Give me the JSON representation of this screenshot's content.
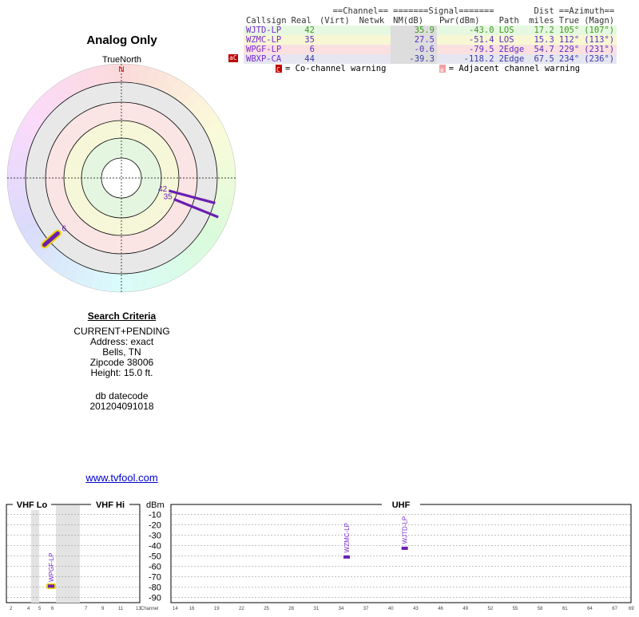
{
  "page": {
    "title": "Analog Only",
    "true_north": "TrueNorth",
    "north_marker": "N",
    "site_link": "www.tvfool.com"
  },
  "criteria": {
    "header": "Search Criteria",
    "lines": [
      "CURRENT+PENDING",
      "Address: exact",
      "Bells, TN",
      "Zipcode 38006",
      "Height: 15.0 ft."
    ],
    "db_label": "db datecode",
    "db_value": "201204091018"
  },
  "table": {
    "group_headers": {
      "channel": "==Channel==",
      "signal": "=======Signal=======",
      "dist": "Dist",
      "azimuth": "==Azimuth=="
    },
    "columns": [
      "Callsign",
      "Real",
      "(Virt)",
      "Netwk",
      "NM(dB)",
      "Pwr(dBm)",
      "Path",
      "miles",
      "True",
      "(Magn)"
    ],
    "rows": [
      {
        "callsign": "WJTD-LP",
        "real": "42",
        "virt": "",
        "netwk": "",
        "nm": "35.9",
        "pwr": "-43.0",
        "path": "LOS",
        "dist": "17.2",
        "true": "105°",
        "magn": "(107°)",
        "band": "g",
        "flag": ""
      },
      {
        "callsign": "WZMC-LP",
        "real": "35",
        "virt": "",
        "netwk": "",
        "nm": "27.5",
        "pwr": "-51.4",
        "path": "LOS",
        "dist": "15.3",
        "true": "112°",
        "magn": "(113°)",
        "band": "y",
        "flag": ""
      },
      {
        "callsign": "WPGF-LP",
        "real": "6",
        "virt": "",
        "netwk": "",
        "nm": "-0.6",
        "pwr": "-79.5",
        "path": "2Edge",
        "dist": "54.7",
        "true": "229°",
        "magn": "(231°)",
        "band": "r",
        "flag": ""
      },
      {
        "callsign": "WBXP-CA",
        "real": "44",
        "virt": "",
        "netwk": "",
        "nm": "-39.3",
        "pwr": "-118.2",
        "path": "2Edge",
        "dist": "67.5",
        "true": "234°",
        "magn": "(236°)",
        "band": "b",
        "flag": "aC"
      }
    ]
  },
  "legend": {
    "cochannel_letter": "C",
    "cochannel_text": "= Co-channel warning",
    "adjacent_letter": "a",
    "adjacent_text": "= Adjacent channel warning",
    "cochannel_color": "#c00000",
    "adjacent_color": "#f4a0a0"
  },
  "chart_data": [
    {
      "type": "scatter",
      "subtype": "polar",
      "description_axis": "azimuth (true degrees)",
      "title": "Analog Only",
      "series": [
        {
          "label": "42",
          "azimuth": 105,
          "nm_db": 35.9,
          "color": "#6a1fb0",
          "highlight": false
        },
        {
          "label": "35",
          "azimuth": 112,
          "nm_db": 27.5,
          "color": "#6a1fb0",
          "highlight": false
        },
        {
          "label": "6",
          "azimuth": 229,
          "nm_db": -0.6,
          "color": "#6a1fb0",
          "highlight": true
        }
      ]
    },
    {
      "type": "bar",
      "title": "",
      "bands": {
        "vhf_lo": "VHF Lo",
        "vhf_hi": "VHF Hi",
        "uhf": "UHF"
      },
      "ylabel": "dBm",
      "yticks": [
        -10,
        -20,
        -30,
        -40,
        -50,
        -60,
        -70,
        -80,
        -90
      ],
      "ylim": [
        -95,
        -5
      ],
      "x_axis_label": "Channel",
      "vhf_lo_ticks": [
        "2",
        "4",
        "5",
        "6"
      ],
      "vhf_hi_ticks": [
        "7",
        "9",
        "11",
        "13"
      ],
      "uhf_ticks": [
        "14",
        "16",
        "19",
        "22",
        "25",
        "28",
        "31",
        "34",
        "37",
        "40",
        "43",
        "46",
        "49",
        "52",
        "55",
        "58",
        "61",
        "64",
        "67",
        "69"
      ],
      "points": [
        {
          "callsign": "WPGF-LP",
          "channel": 6,
          "dbm": -79.5,
          "highlight": true
        },
        {
          "callsign": "WZMC-LP",
          "channel": 35,
          "dbm": -51.4,
          "highlight": false
        },
        {
          "callsign": "WJTD-LP",
          "channel": 42,
          "dbm": -43.0,
          "highlight": false
        }
      ]
    }
  ]
}
